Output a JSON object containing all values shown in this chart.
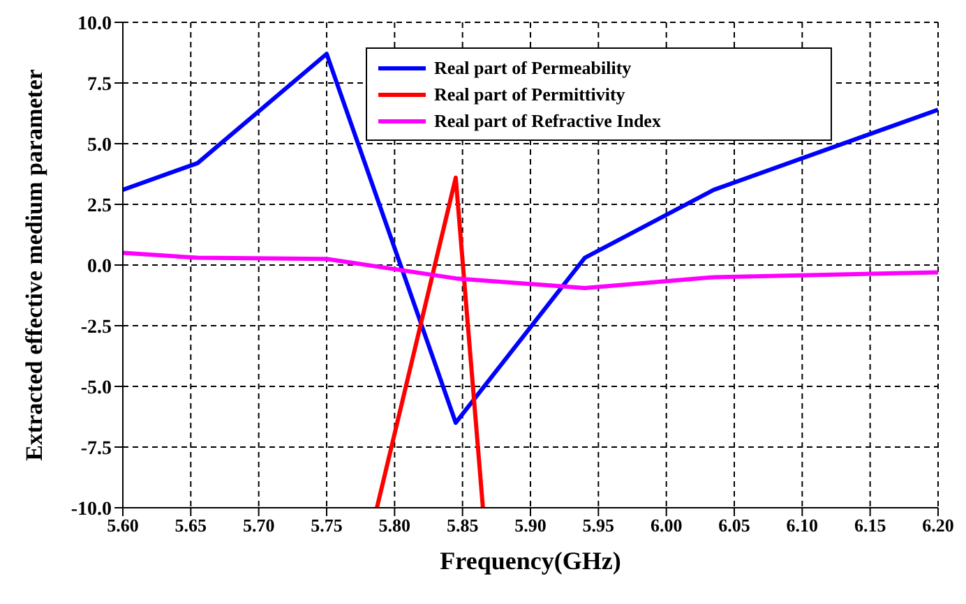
{
  "chart_data": {
    "type": "line",
    "xlabel": "Frequency(GHz)",
    "ylabel": "Extracted effective medium parameter",
    "series": [
      {
        "name": "Real part of Permeability",
        "color": "#0000ff",
        "x": [
          5.6,
          5.655,
          5.75,
          5.845,
          5.94,
          6.035,
          6.2
        ],
        "values": [
          3.1,
          4.2,
          8.7,
          -6.5,
          0.3,
          3.1,
          6.4
        ]
      },
      {
        "name": "Real part of Permittivity",
        "color": "#ff0000",
        "x": [
          5.787,
          5.845,
          5.865
        ],
        "values": [
          -10,
          3.6,
          -10
        ]
      },
      {
        "name": "Real part of Refractive Index",
        "color": "#ff00ff",
        "x": [
          5.6,
          5.655,
          5.75,
          5.845,
          5.94,
          6.035,
          6.2
        ],
        "values": [
          0.5,
          0.3,
          0.25,
          -0.55,
          -0.95,
          -0.5,
          -0.3
        ]
      }
    ],
    "xlim": [
      5.6,
      6.2
    ],
    "xticks": [
      {
        "value": 5.6,
        "label": "5.60"
      },
      {
        "value": 5.65,
        "label": "5.65"
      },
      {
        "value": 5.7,
        "label": "5.70"
      },
      {
        "value": 5.75,
        "label": "5.75"
      },
      {
        "value": 5.8,
        "label": "5.80"
      },
      {
        "value": 5.85,
        "label": "5.85"
      },
      {
        "value": 5.9,
        "label": "5.90"
      },
      {
        "value": 5.95,
        "label": "5.95"
      },
      {
        "value": 6.0,
        "label": "6.00"
      },
      {
        "value": 6.05,
        "label": "6.05"
      },
      {
        "value": 6.1,
        "label": "6.10"
      },
      {
        "value": 6.15,
        "label": "6.15"
      },
      {
        "value": 6.2,
        "label": "6.20"
      }
    ],
    "ylim": [
      -10,
      10
    ],
    "yticks": [
      {
        "value": -10,
        "label": "-10.0"
      },
      {
        "value": -7.5,
        "label": "-7.5"
      },
      {
        "value": -5,
        "label": "-5.0"
      },
      {
        "value": -2.5,
        "label": "-2.5"
      },
      {
        "value": 0,
        "label": "0.0"
      },
      {
        "value": 2.5,
        "label": "2.5"
      },
      {
        "value": 5,
        "label": "5.0"
      },
      {
        "value": 7.5,
        "label": "7.5"
      },
      {
        "value": 10,
        "label": "10.0"
      }
    ],
    "grid": true,
    "legend": "top right",
    "marker": "none",
    "line_style": "solid"
  }
}
